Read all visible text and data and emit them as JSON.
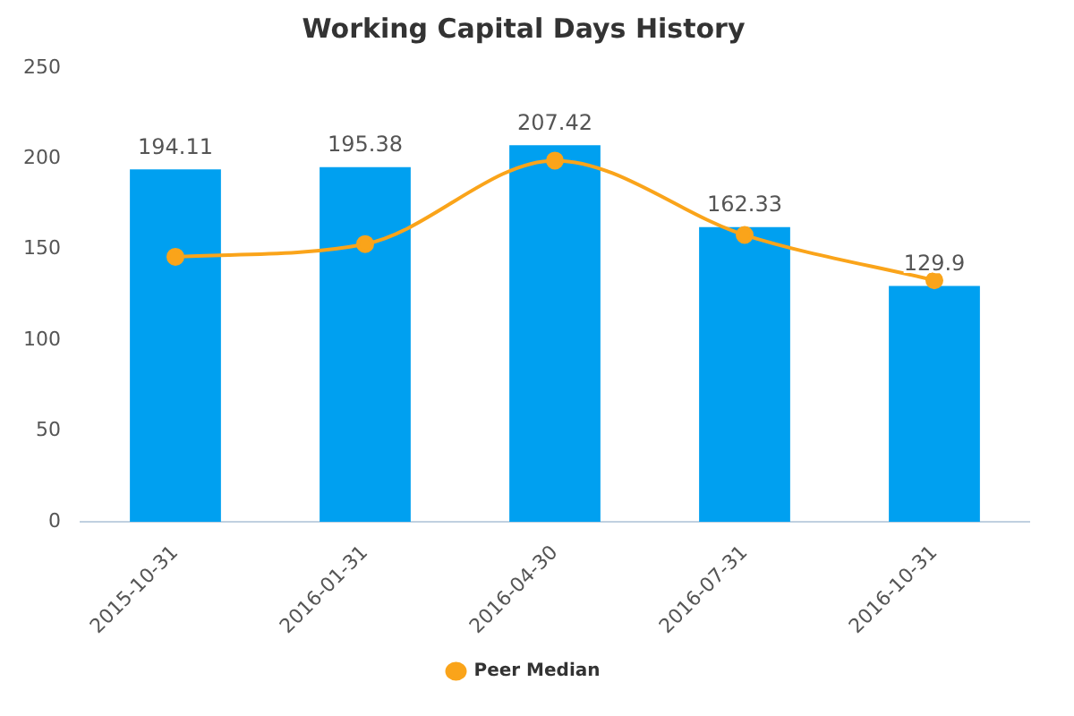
{
  "chart_data": {
    "type": "bar",
    "title": "Working Capital Days History",
    "categories": [
      "2015-10-31",
      "2016-01-31",
      "2016-04-30",
      "2016-07-31",
      "2016-10-31"
    ],
    "series": [
      {
        "color": "#00a0f0",
        "values": [
          194.11,
          195.38,
          207.42,
          162.33,
          129.9
        ],
        "value_labels": [
          "194.11",
          "195.38",
          "207.42",
          "162.33",
          "129.9"
        ]
      },
      {
        "type": "line",
        "name": "Peer Median",
        "color": "#faa41a",
        "values": [
          146,
          153,
          199,
          158,
          133
        ]
      }
    ],
    "ylim": [
      0,
      250
    ],
    "yticks": [
      0,
      50,
      100,
      150,
      200,
      250
    ],
    "grid": false,
    "legend": "bottom",
    "marker": "circle"
  }
}
